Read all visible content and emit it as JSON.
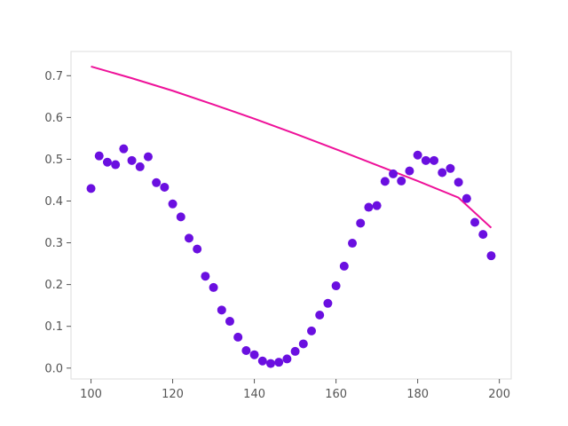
{
  "chart_data": {
    "type": "scatter",
    "title": "",
    "xlabel": "",
    "ylabel": "",
    "xlim": [
      95.1,
      202.9
    ],
    "ylim": [
      -0.026,
      0.758
    ],
    "x_ticks": [
      100,
      120,
      140,
      160,
      180,
      200
    ],
    "y_ticks": [
      0.0,
      0.1,
      0.2,
      0.3,
      0.4,
      0.5,
      0.6,
      0.7
    ],
    "grid": false,
    "legend": "none",
    "colors": {
      "points": "#6a0fe0",
      "line": "#ee1199",
      "frame": "#dddddd",
      "tick_text": "#555555"
    },
    "series": [
      {
        "kind": "scatter",
        "x": [
          100,
          102,
          104,
          106,
          108,
          110,
          112,
          114,
          116,
          118,
          120,
          122,
          124,
          126,
          128,
          130,
          132,
          134,
          136,
          138,
          140,
          142,
          144,
          146,
          148,
          150,
          152,
          154,
          156,
          158,
          160,
          162,
          164,
          166,
          168,
          170,
          172,
          174,
          176,
          178,
          180,
          182,
          184,
          186,
          188,
          190,
          192,
          194,
          196,
          198
        ],
        "y": [
          0.43,
          0.508,
          0.493,
          0.487,
          0.525,
          0.497,
          0.482,
          0.506,
          0.444,
          0.433,
          0.393,
          0.362,
          0.311,
          0.285,
          0.22,
          0.193,
          0.139,
          0.112,
          0.074,
          0.042,
          0.032,
          0.017,
          0.011,
          0.014,
          0.022,
          0.04,
          0.058,
          0.089,
          0.127,
          0.155,
          0.197,
          0.244,
          0.299,
          0.347,
          0.385,
          0.389,
          0.447,
          0.465,
          0.448,
          0.472,
          0.51,
          0.497,
          0.497,
          0.468,
          0.478,
          0.445,
          0.406,
          0.349,
          0.32,
          0.269
        ]
      },
      {
        "kind": "line",
        "x": [
          100,
          110,
          120,
          130,
          140,
          150,
          160,
          170,
          180,
          190,
          198
        ],
        "y": [
          0.722,
          0.694,
          0.664,
          0.631,
          0.597,
          0.561,
          0.524,
          0.486,
          0.448,
          0.408,
          0.336
        ]
      }
    ]
  }
}
